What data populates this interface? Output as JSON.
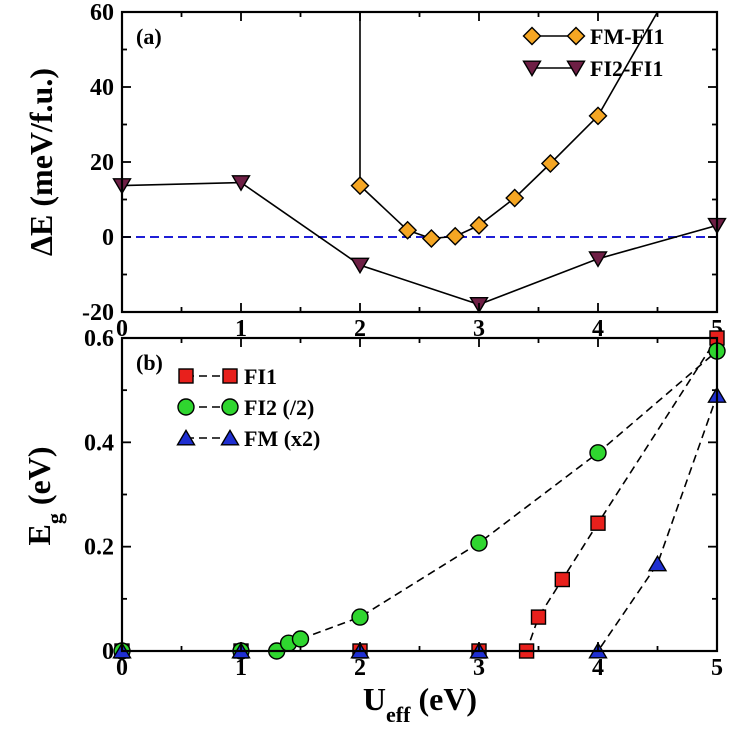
{
  "chart_data": [
    {
      "panel": "(a)",
      "type": "line",
      "ylabel": "ΔE (meV/f.u.)",
      "xlim": [
        0,
        5
      ],
      "ylim": [
        -20,
        60
      ],
      "xticks": [
        "0",
        "1",
        "2",
        "3",
        "4",
        "5"
      ],
      "yticks": [
        "-20",
        "0",
        "20",
        "40",
        "60"
      ],
      "reference_line_y": 0,
      "legend_position": "top-right",
      "series": [
        {
          "name": "FM-FI1",
          "marker": "diamond",
          "color": "#f5a623",
          "line": "solid",
          "line_start": {
            "x": 2.0,
            "y": 61.2
          },
          "x": [
            2.0,
            2.4,
            2.6,
            2.8,
            3.0,
            3.3,
            3.6,
            4.0
          ],
          "y": [
            13.7,
            1.8,
            -0.4,
            0.2,
            3.1,
            10.4,
            19.6,
            32.3
          ],
          "line_end": {
            "x": 4.5,
            "y": 60.0
          }
        },
        {
          "name": "FI2-FI1",
          "marker": "triangle-down",
          "color": "#6e1f45",
          "line": "solid",
          "x": [
            0,
            1,
            2,
            3,
            4,
            5
          ],
          "y": [
            13.7,
            14.5,
            -7.5,
            -18.0,
            -5.8,
            3.1
          ]
        }
      ]
    },
    {
      "panel": "(b)",
      "type": "line",
      "xlabel": "Ueff (eV)",
      "xlabel_main": "U",
      "xlabel_sub": "eff",
      "xlabel_rest": "(eV)",
      "ylabel": "Eg (eV)",
      "ylabel_main": "E",
      "ylabel_sub": "g",
      "ylabel_rest": "(eV)",
      "xlim": [
        0,
        5
      ],
      "ylim": [
        0,
        0.6
      ],
      "xticks": [
        "0",
        "1",
        "2",
        "3",
        "4",
        "5"
      ],
      "yticks": [
        "0",
        "0.2",
        "0.4",
        "0.6"
      ],
      "legend_position": "top-left",
      "series": [
        {
          "name": "FI1",
          "marker": "square",
          "color": "#e8201c",
          "line": "dashed",
          "x": [
            0,
            1,
            2,
            3,
            3.4,
            3.5,
            3.7,
            4.0,
            5.0
          ],
          "y": [
            0,
            0,
            0,
            0,
            0,
            0.065,
            0.137,
            0.245,
            0.6
          ]
        },
        {
          "name": "FI2 (/2)",
          "marker": "circle",
          "color": "#2fd62f",
          "line": "dashed",
          "x": [
            0,
            1,
            1.3,
            1.4,
            1.5,
            2.0,
            3.0,
            4.0,
            5.0
          ],
          "y": [
            0,
            0,
            0,
            0.015,
            0.023,
            0.065,
            0.207,
            0.38,
            0.575
          ]
        },
        {
          "name": "FM (x2)",
          "marker": "triangle-up",
          "color": "#1f2fd1",
          "line": "dashed",
          "x": [
            0,
            1,
            2,
            3,
            4.0,
            4.5,
            5.0
          ],
          "y": [
            0,
            0,
            0,
            0,
            0,
            0.167,
            0.49
          ]
        }
      ]
    }
  ]
}
